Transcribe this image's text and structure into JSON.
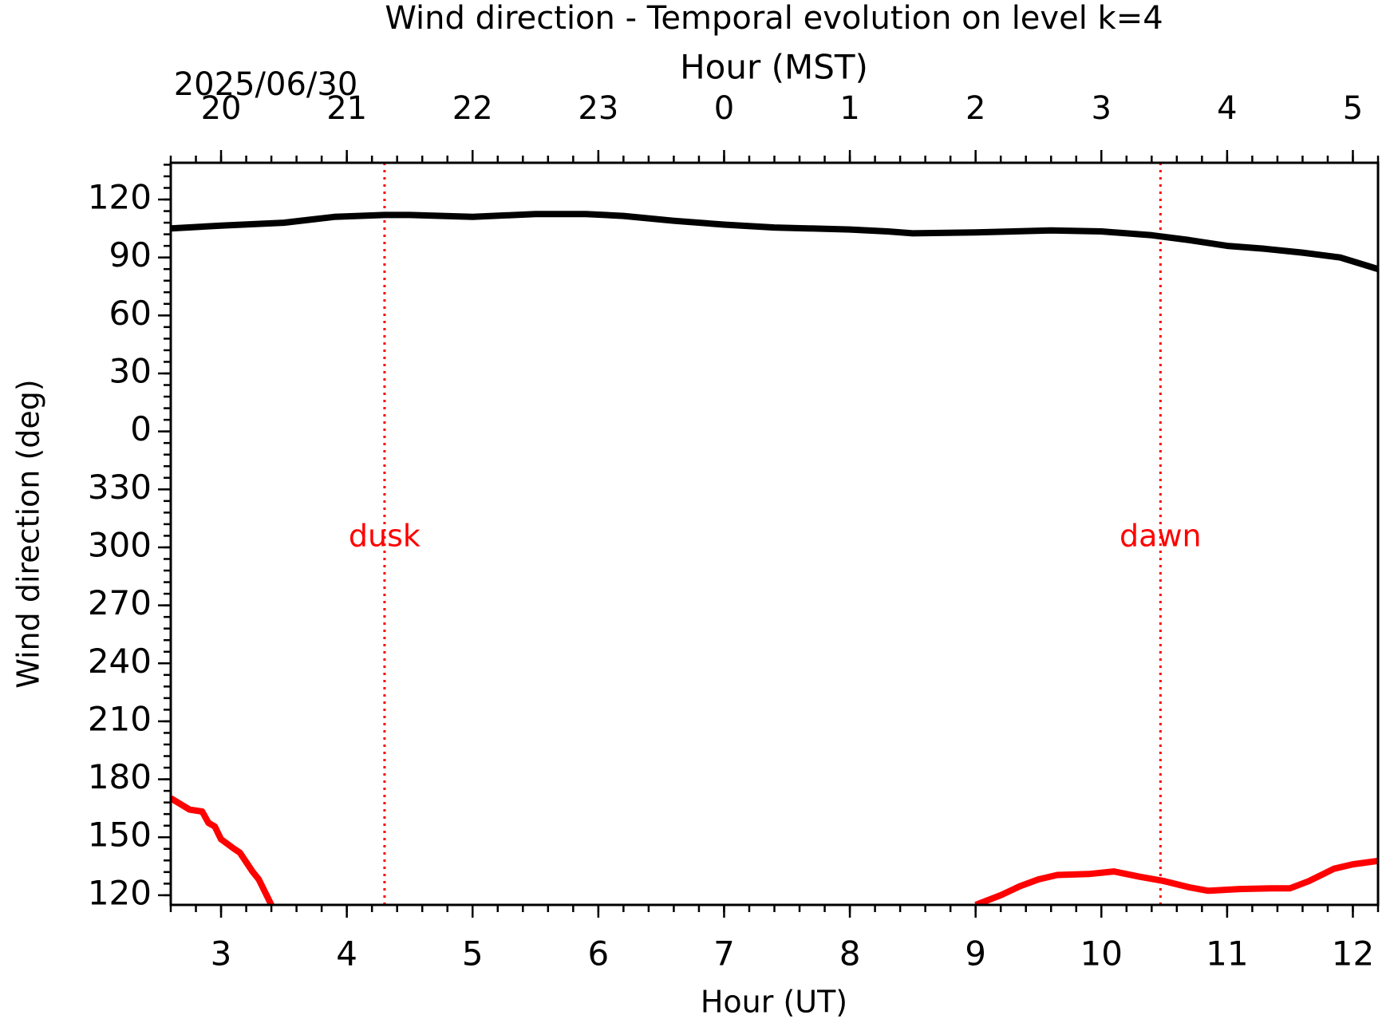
{
  "chart_data": {
    "type": "line",
    "title": "Wind direction - Temporal evolution on level k=4",
    "xlabel": "Hour (UT)",
    "x2label": "Hour (MST)",
    "date_label": "2025/06/30",
    "ylabel": "Wind direction (deg)",
    "xlim": [
      2.6,
      12.2
    ],
    "xticks": [
      3,
      4,
      5,
      6,
      7,
      8,
      9,
      10,
      11,
      12
    ],
    "x2ticks": [
      {
        "value": 3,
        "label": "20"
      },
      {
        "value": 4,
        "label": "21"
      },
      {
        "value": 5,
        "label": "22"
      },
      {
        "value": 6,
        "label": "23"
      },
      {
        "value": 7,
        "label": "0"
      },
      {
        "value": 8,
        "label": "1"
      },
      {
        "value": 9,
        "label": "2"
      },
      {
        "value": 10,
        "label": "3"
      },
      {
        "value": 11,
        "label": "4"
      },
      {
        "value": 12,
        "label": "5"
      }
    ],
    "ylim": [
      -245,
      139
    ],
    "yticks": [
      {
        "value": -240,
        "label": "120"
      },
      {
        "value": -210,
        "label": "150"
      },
      {
        "value": -180,
        "label": "180"
      },
      {
        "value": -150,
        "label": "210"
      },
      {
        "value": -120,
        "label": "240"
      },
      {
        "value": -90,
        "label": "270"
      },
      {
        "value": -60,
        "label": "300"
      },
      {
        "value": -30,
        "label": "330"
      },
      0,
      30,
      60,
      90,
      120
    ],
    "series": [
      {
        "color": "#000000",
        "x": [
          2.6,
          3.0,
          3.5,
          3.9,
          4.3,
          4.5,
          5.0,
          5.5,
          5.9,
          6.2,
          6.6,
          7.0,
          7.4,
          8.0,
          8.3,
          8.5,
          9.0,
          9.6,
          10.0,
          10.4,
          10.7,
          11.0,
          11.3,
          11.6,
          11.9,
          12.2
        ],
        "values": [
          105,
          106.5,
          108,
          111,
          112,
          112,
          111,
          112.5,
          112.5,
          111.5,
          109,
          107,
          105.5,
          104.5,
          103.5,
          102.5,
          103,
          104,
          103.5,
          101.5,
          99,
          96,
          94.5,
          92.5,
          90,
          84
        ]
      },
      {
        "color": "#ff0000",
        "x": [
          2.6,
          2.75,
          2.85,
          2.9,
          2.95,
          3.0,
          3.1,
          3.15,
          3.25,
          3.3,
          3.4,
          6.0,
          9.0,
          9.2,
          9.35,
          9.5,
          9.65,
          9.9,
          10.1,
          10.3,
          10.5,
          10.7,
          10.85,
          11.1,
          11.35,
          11.5,
          11.65,
          11.85,
          12.0,
          12.2
        ],
        "values": [
          -189.8,
          -195.7,
          -196.7,
          -202.6,
          -204.4,
          -211,
          -215.8,
          -218,
          -227.7,
          -231.8,
          -245,
          null,
          -245,
          -240,
          -235.4,
          -231.8,
          -229.5,
          -229,
          -227.7,
          -230.4,
          -232.7,
          -235.9,
          -237.7,
          -236.8,
          -236.4,
          -236.4,
          -232.7,
          -226.3,
          -224,
          -222.2
        ]
      }
    ],
    "vlines": [
      {
        "x": 4.3,
        "label": "dusk",
        "color": "#ff0000"
      },
      {
        "x": 10.47,
        "label": "dawn",
        "color": "#ff0000"
      }
    ]
  }
}
